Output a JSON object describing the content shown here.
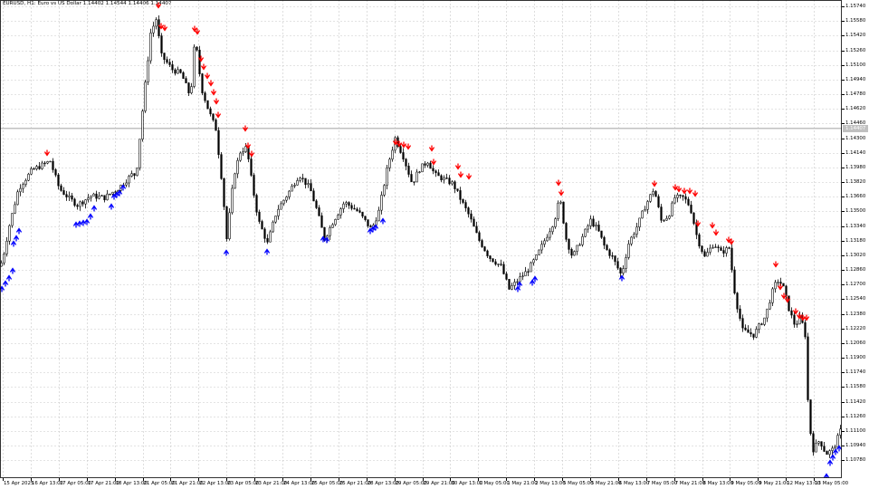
{
  "chart": {
    "symbol_info": "EURUSD, H1: Euro vs US Dollar  1.14402 1.14544 1.14406 1.14407",
    "current_price": "1.14407",
    "colors": {
      "background": "#ffffff",
      "grid": "#c8c8c8",
      "candle": "#000000",
      "arrow_up": "#0000ff",
      "arrow_down": "#ff0000",
      "current_price_line": "#c0c0c0"
    },
    "price_axis_labels": [
      "1.15740",
      "1.15580",
      "1.15420",
      "1.15260",
      "1.15100",
      "1.14940",
      "1.14780",
      "1.14620",
      "1.14460",
      "1.14300",
      "1.14140",
      "1.13980",
      "1.13820",
      "1.13660",
      "1.13500",
      "1.13340",
      "1.13180",
      "1.13020",
      "1.12860",
      "1.12700",
      "1.12540",
      "1.12380",
      "1.12220",
      "1.12060",
      "1.11900",
      "1.11740",
      "1.11580",
      "1.11420",
      "1.11260",
      "1.11100",
      "1.10940",
      "1.10780"
    ],
    "time_axis_labels": [
      "15 Apr 2025",
      "16 Apr 13:00",
      "17 Apr 05:00",
      "17 Apr 21:00",
      "18 Apr 13:00",
      "21 Apr 05:00",
      "21 Apr 21:00",
      "22 Apr 13:00",
      "23 Apr 05:00",
      "23 Apr 21:00",
      "24 Apr 13:00",
      "25 Apr 05:00",
      "25 Apr 21:00",
      "28 Apr 13:00",
      "29 Apr 05:00",
      "29 Apr 21:00",
      "30 Apr 13:00",
      "1 May 05:00",
      "1 May 21:00",
      "2 May 13:00",
      "5 May 05:00",
      "5 May 21:00",
      "6 May 13:00",
      "7 May 05:00",
      "7 May 21:00",
      "8 May 13:00",
      "9 May 05:00",
      "9 May 21:00",
      "12 May 13:00",
      "13 May 05:00"
    ]
  }
}
